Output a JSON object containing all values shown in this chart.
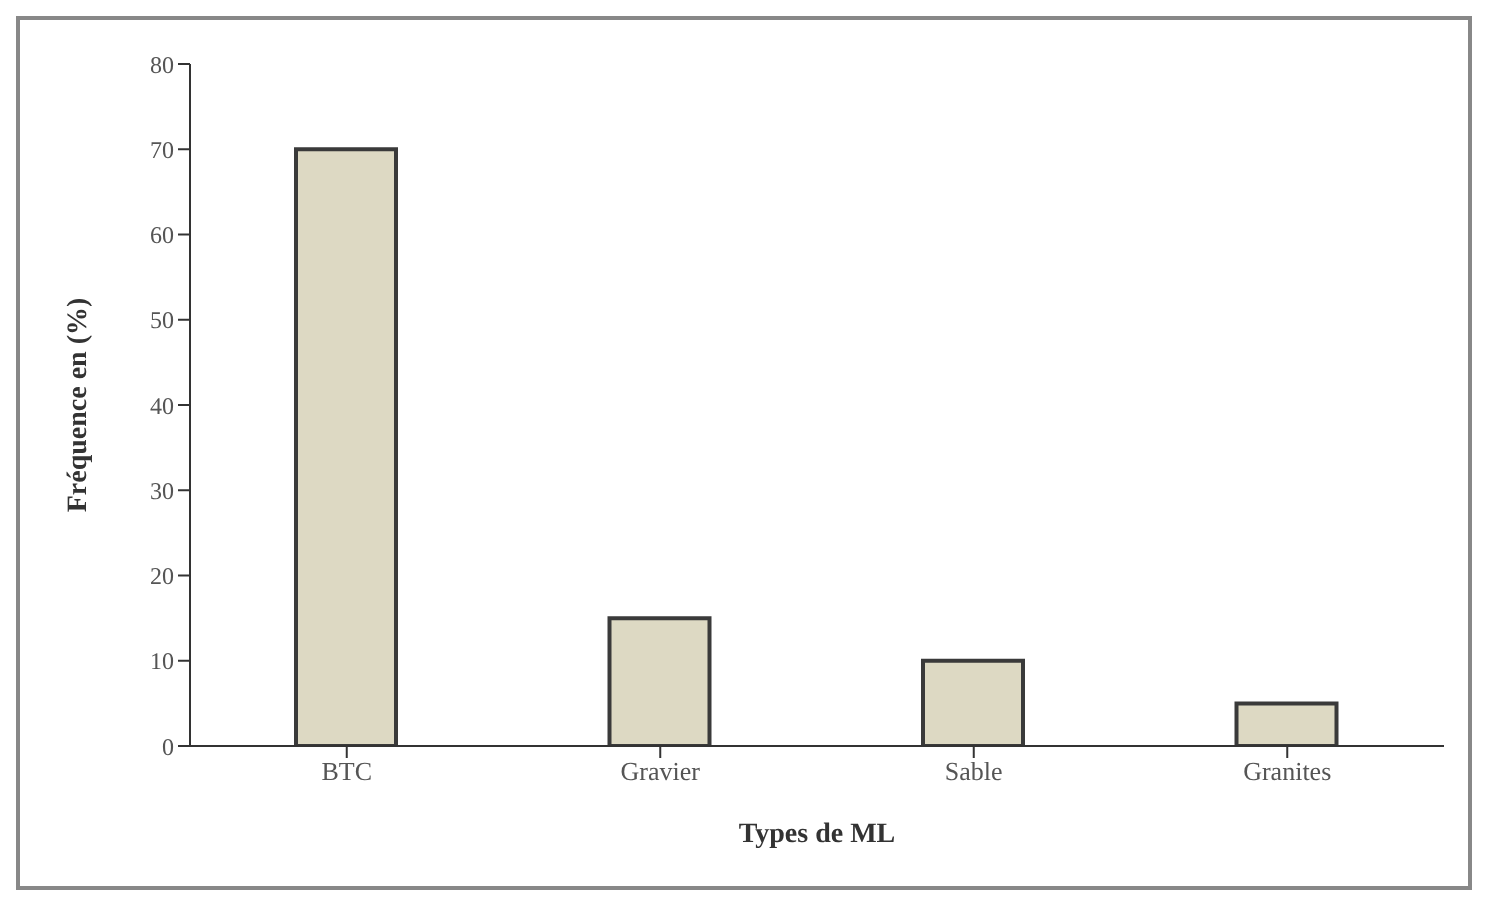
{
  "chart_data": {
    "type": "bar",
    "xlabel": "Types de ML",
    "ylabel": "Fréquence en (%)",
    "categories": [
      "BTC",
      "Gravier",
      "Sable",
      "Granites"
    ],
    "values": [
      70,
      15,
      10,
      5
    ],
    "color": "#ddd9c3",
    "ylim": [
      0,
      80
    ],
    "yticks": [
      0,
      10,
      20,
      30,
      40,
      50,
      60,
      70,
      80
    ],
    "grid": false
  }
}
